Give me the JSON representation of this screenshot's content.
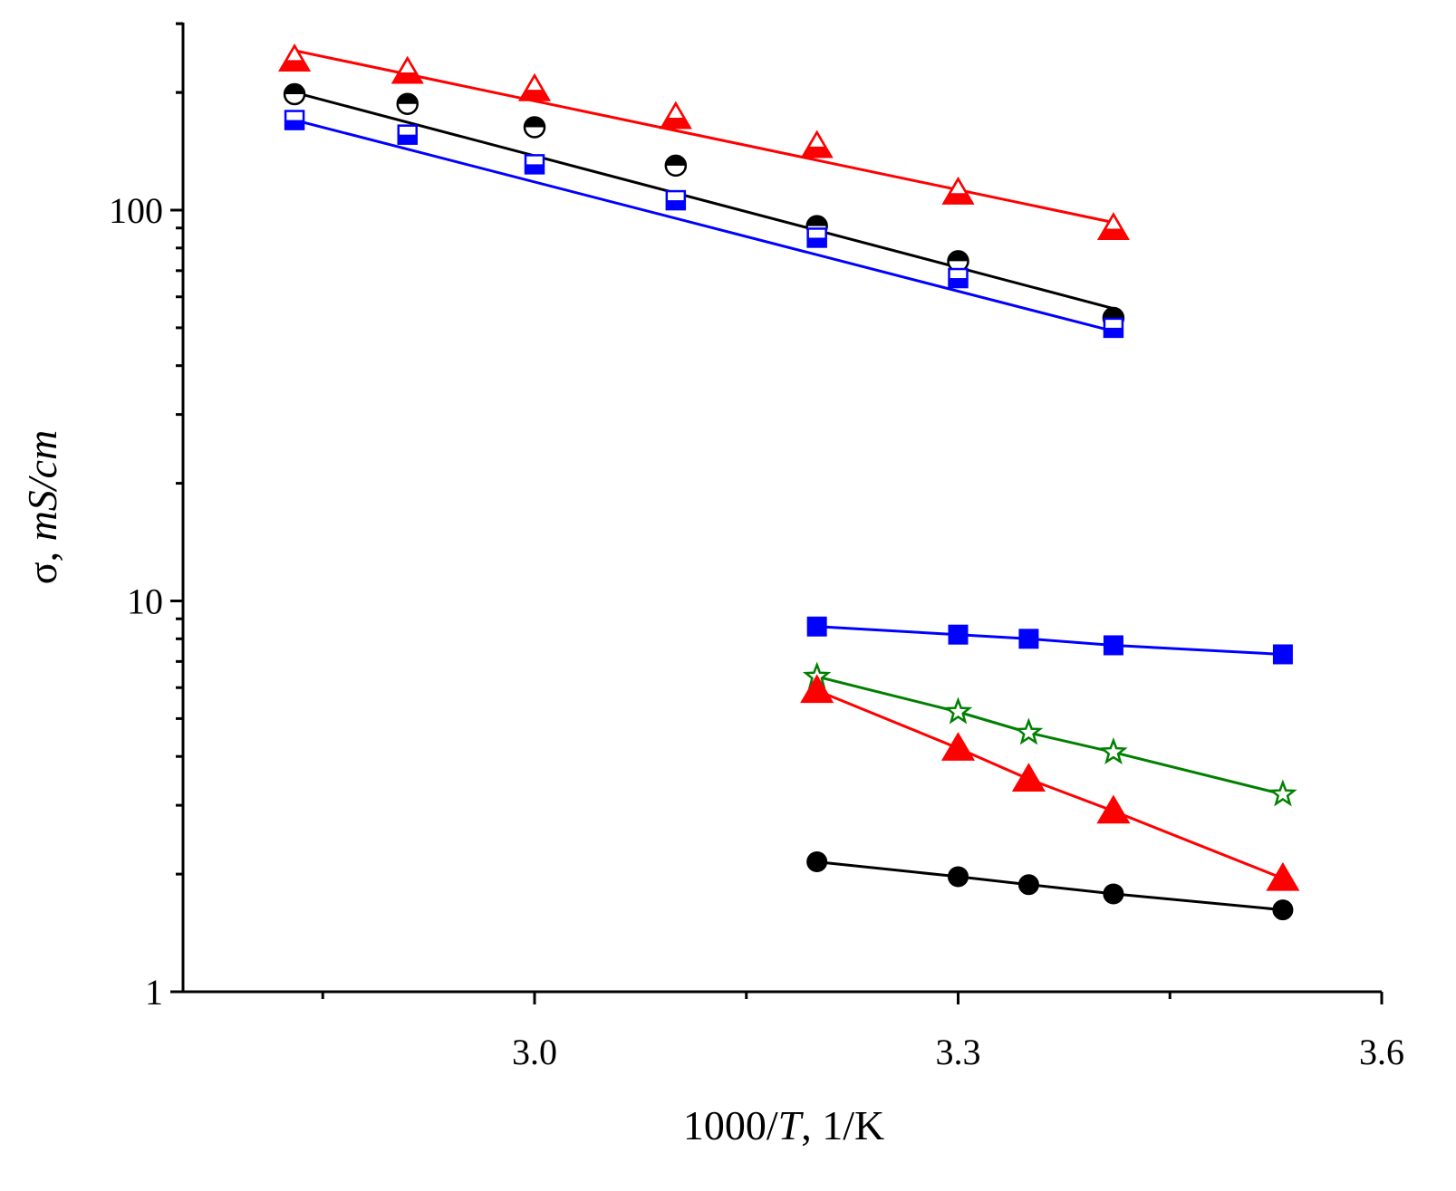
{
  "chart_data": {
    "type": "scatter",
    "title": "",
    "xlabel": {
      "prefix": "1000/",
      "var": "T",
      "suffix": ", 1/K"
    },
    "ylabel": {
      "prefix": "σ, ",
      "unit": "mS/cm"
    },
    "xlim": [
      2.75,
      3.6
    ],
    "ylim": [
      1,
      300
    ],
    "yscale": "log",
    "x_ticks": [
      {
        "value": 3.0,
        "label": "3.0"
      },
      {
        "value": 3.3,
        "label": "3.3"
      },
      {
        "value": 3.6,
        "label": "3.6"
      }
    ],
    "x_minor_ticks": [
      2.85,
      3.15,
      3.45
    ],
    "y_ticks": [
      {
        "value": 1,
        "label": "1"
      },
      {
        "value": 10,
        "label": "10"
      },
      {
        "value": 100,
        "label": "100"
      }
    ],
    "series": [
      {
        "name": "red-open-triangles",
        "color": "#ff0000",
        "marker": "triangle",
        "fill": "open",
        "x": [
          2.83,
          2.91,
          3.0,
          3.1,
          3.2,
          3.3,
          3.41
        ],
        "y": [
          243,
          226,
          204,
          173,
          146,
          111,
          90
        ],
        "fit": {
          "x": [
            2.83,
            3.41
          ],
          "y": [
            256,
            93
          ]
        }
      },
      {
        "name": "black-half-filled-circles",
        "color": "#000000",
        "marker": "circle",
        "fill": "half",
        "x": [
          2.83,
          2.91,
          3.0,
          3.1,
          3.2,
          3.3,
          3.41
        ],
        "y": [
          198,
          187,
          163,
          130,
          91,
          74,
          53
        ],
        "fit": {
          "x": [
            2.83,
            3.41
          ],
          "y": [
            200,
            56
          ]
        }
      },
      {
        "name": "blue-half-filled-squares",
        "color": "#0000ff",
        "marker": "square",
        "fill": "half",
        "x": [
          2.83,
          2.91,
          3.0,
          3.1,
          3.2,
          3.3,
          3.41
        ],
        "y": [
          170,
          156,
          131,
          106,
          85,
          67,
          50
        ],
        "fit": {
          "x": [
            2.83,
            3.41
          ],
          "y": [
            170,
            49
          ]
        }
      },
      {
        "name": "blue-filled-squares",
        "color": "#0000ff",
        "marker": "square",
        "fill": "filled",
        "connected": true,
        "x": [
          3.2,
          3.3,
          3.35,
          3.41,
          3.53
        ],
        "y": [
          8.6,
          8.2,
          8.0,
          7.7,
          7.3
        ]
      },
      {
        "name": "green-open-stars",
        "color": "#008000",
        "marker": "star",
        "fill": "open",
        "connected": true,
        "x": [
          3.2,
          3.3,
          3.35,
          3.41,
          3.53
        ],
        "y": [
          6.4,
          5.2,
          4.6,
          4.1,
          3.2
        ]
      },
      {
        "name": "red-filled-triangles",
        "color": "#ff0000",
        "marker": "triangle",
        "fill": "filled",
        "connected": true,
        "x": [
          3.2,
          3.3,
          3.35,
          3.41,
          3.53
        ],
        "y": [
          5.9,
          4.2,
          3.5,
          2.9,
          1.95
        ]
      },
      {
        "name": "black-filled-circles",
        "color": "#000000",
        "marker": "circle",
        "fill": "filled",
        "connected": true,
        "x": [
          3.2,
          3.3,
          3.35,
          3.41,
          3.53
        ],
        "y": [
          2.15,
          1.97,
          1.88,
          1.78,
          1.62
        ]
      }
    ]
  }
}
